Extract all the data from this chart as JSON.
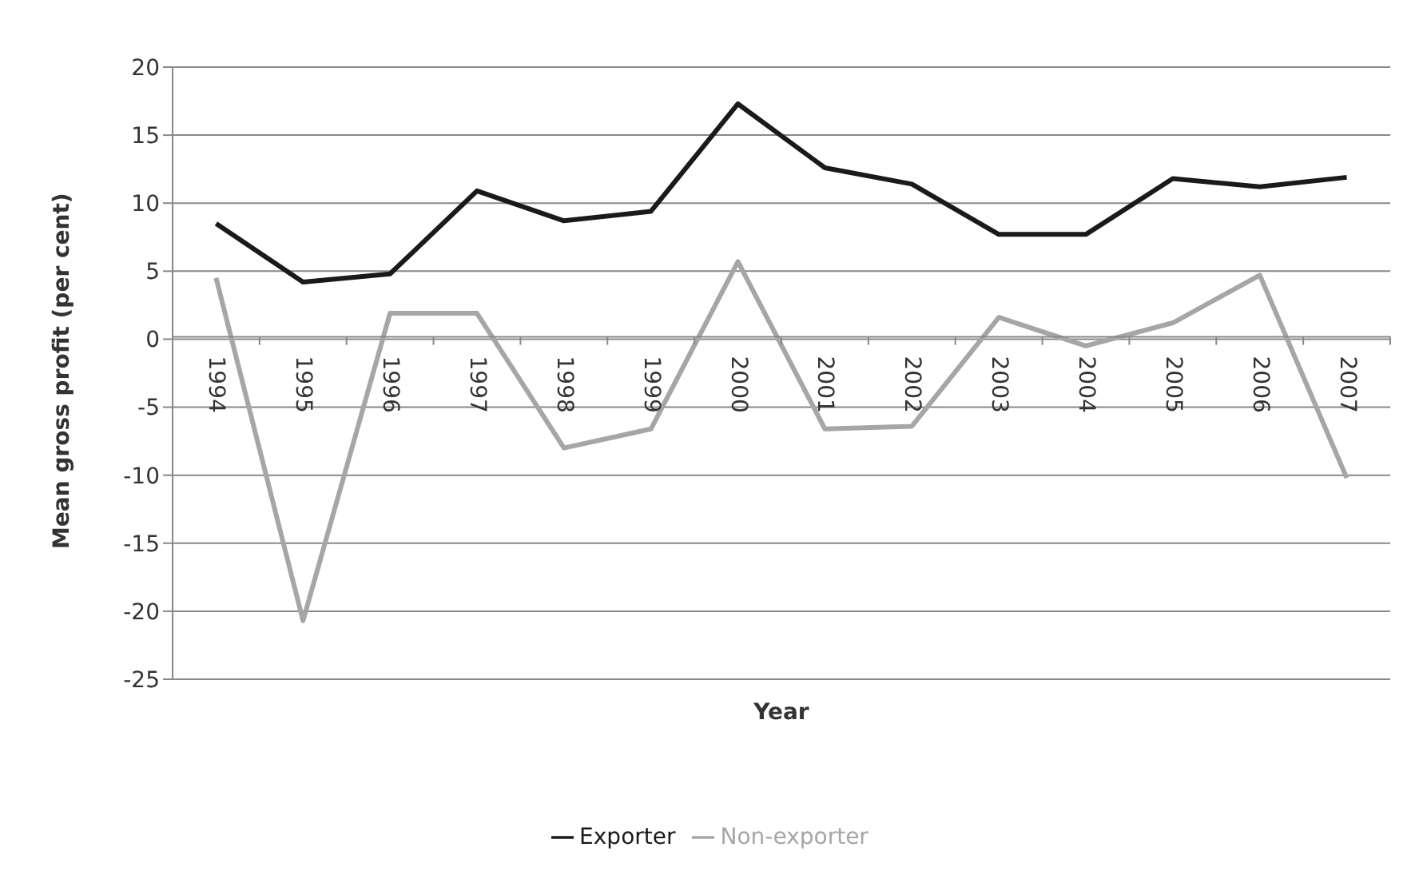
{
  "chart_data": {
    "type": "line",
    "xlabel": "Year",
    "ylabel": "Mean gross profit (per cent)",
    "categories": [
      "1994",
      "1995",
      "1996",
      "1997",
      "1998",
      "1999",
      "2000",
      "2001",
      "2002",
      "2003",
      "2004",
      "2005",
      "2006",
      "2007"
    ],
    "series": [
      {
        "name": "Exporter",
        "color": "#1a1a1a",
        "values": [
          8.5,
          4.2,
          4.8,
          10.9,
          8.7,
          9.4,
          17.3,
          12.6,
          11.4,
          7.7,
          7.7,
          11.8,
          11.2,
          11.9
        ]
      },
      {
        "name": "Non-exporter",
        "color": "#a6a6a6",
        "values": [
          4.5,
          -20.7,
          1.9,
          1.9,
          -8.0,
          -6.6,
          5.7,
          -6.6,
          -6.4,
          1.6,
          -0.5,
          1.2,
          4.7,
          -10.2
        ]
      }
    ],
    "ylim": [
      -25,
      20
    ],
    "yticks": [
      -25,
      -20,
      -15,
      -10,
      -5,
      0,
      5,
      10,
      15,
      20
    ],
    "grid": "y",
    "legend": "bottom",
    "marker": "none",
    "line_style": "solid"
  }
}
